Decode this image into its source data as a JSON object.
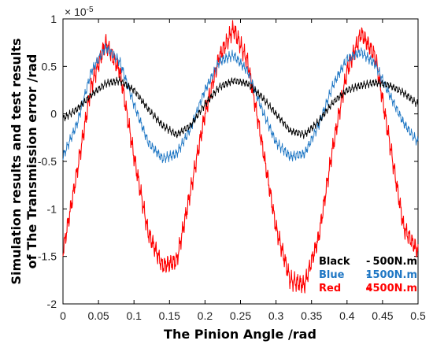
{
  "chart_data": {
    "type": "line",
    "xlabel": "The Pinion Angle /rad",
    "ylabel_line1": "Simulation results and test results",
    "ylabel_line2": "of The  Transmission error  /rad",
    "y_exponent": "× 10",
    "y_exponent_power": "-5",
    "xlim": [
      0,
      0.5
    ],
    "ylim": [
      -2,
      1
    ],
    "x_ticks": [
      0,
      0.05,
      0.1,
      0.15,
      0.2,
      0.25,
      0.3,
      0.35,
      0.4,
      0.45,
      0.5
    ],
    "x_tick_labels": [
      "0",
      "0.05",
      "0.1",
      "0.15",
      "0.2",
      "0.25",
      "0.3",
      "0.35",
      "0.4",
      "0.45",
      "0.5"
    ],
    "y_ticks": [
      -2,
      -1.5,
      -1,
      -0.5,
      0,
      0.5,
      1
    ],
    "y_tick_labels": [
      "-2",
      "-1.5",
      "-1",
      "-0.5",
      "0",
      "0.5",
      "1"
    ],
    "legend_position": "bottom-right",
    "series": [
      {
        "name": "Black",
        "load": "500N.m",
        "color": "#000000",
        "x": [
          0,
          0.02,
          0.04,
          0.06,
          0.08,
          0.1,
          0.12,
          0.14,
          0.16,
          0.18,
          0.2,
          0.22,
          0.24,
          0.26,
          0.28,
          0.3,
          0.32,
          0.34,
          0.36,
          0.38,
          0.4,
          0.42,
          0.44,
          0.46,
          0.48,
          0.5
        ],
        "y": [
          -0.05,
          0.05,
          0.2,
          0.32,
          0.35,
          0.25,
          0.05,
          -0.12,
          -0.22,
          -0.12,
          0.1,
          0.28,
          0.35,
          0.32,
          0.18,
          0.0,
          -0.18,
          -0.22,
          -0.08,
          0.12,
          0.25,
          0.3,
          0.33,
          0.3,
          0.22,
          0.1
        ]
      },
      {
        "name": "Blue",
        "load": "1500N.m",
        "color": "#1f77c4",
        "x": [
          0,
          0.02,
          0.04,
          0.06,
          0.08,
          0.1,
          0.12,
          0.14,
          0.16,
          0.18,
          0.2,
          0.22,
          0.24,
          0.26,
          0.28,
          0.3,
          0.32,
          0.34,
          0.36,
          0.38,
          0.4,
          0.42,
          0.44,
          0.46,
          0.48,
          0.5
        ],
        "y": [
          -0.45,
          -0.1,
          0.45,
          0.7,
          0.55,
          0.1,
          -0.3,
          -0.47,
          -0.42,
          -0.15,
          0.25,
          0.55,
          0.62,
          0.45,
          0.05,
          -0.3,
          -0.45,
          -0.42,
          -0.12,
          0.3,
          0.58,
          0.65,
          0.52,
          0.2,
          -0.1,
          -0.3
        ]
      },
      {
        "name": "Red",
        "load": "4500N.m",
        "color": "#ff0000",
        "x": [
          0,
          0.02,
          0.04,
          0.06,
          0.08,
          0.1,
          0.12,
          0.14,
          0.16,
          0.18,
          0.2,
          0.22,
          0.24,
          0.26,
          0.28,
          0.3,
          0.32,
          0.34,
          0.36,
          0.38,
          0.4,
          0.42,
          0.44,
          0.46,
          0.48,
          0.5
        ],
        "y": [
          -1.45,
          -0.6,
          0.3,
          0.75,
          0.45,
          -0.45,
          -1.25,
          -1.6,
          -1.55,
          -0.8,
          0.0,
          0.6,
          0.9,
          0.55,
          -0.3,
          -1.2,
          -1.75,
          -1.8,
          -1.3,
          -0.35,
          0.45,
          0.85,
          0.6,
          -0.3,
          -1.2,
          -1.45
        ]
      }
    ]
  }
}
